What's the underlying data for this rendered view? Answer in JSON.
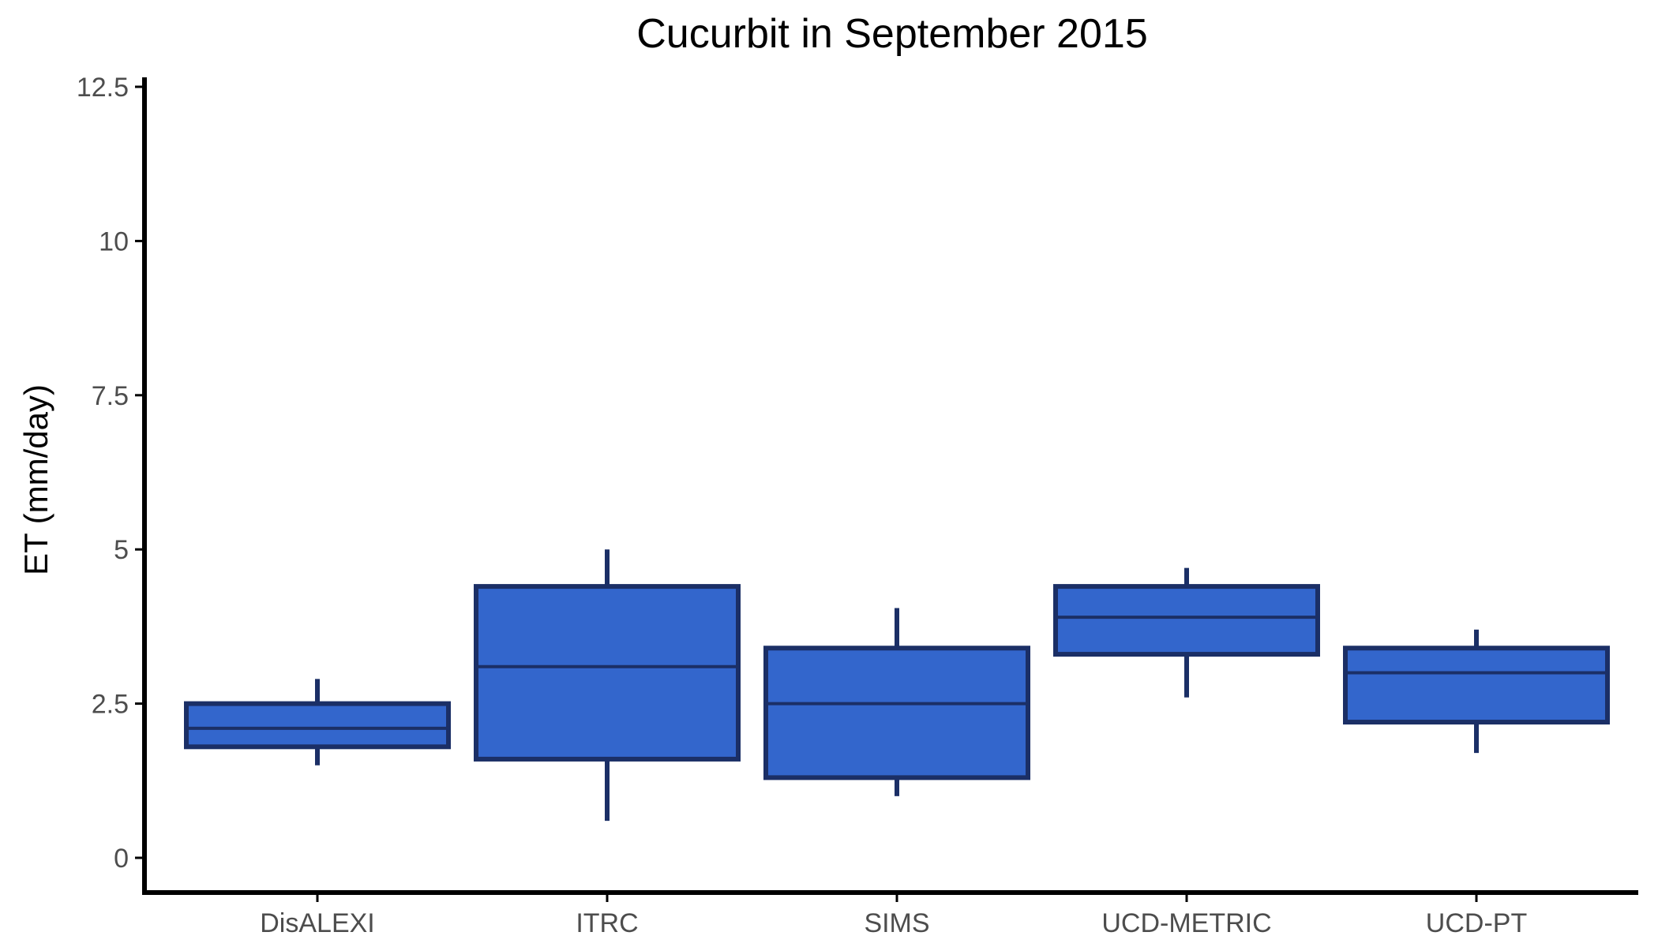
{
  "chart_data": {
    "type": "boxplot",
    "title": "Cucurbit in September 2015",
    "xlabel": "",
    "ylabel": "ET (mm/day)",
    "ylim": [
      0,
      12.5
    ],
    "yticks": [
      0,
      2.5,
      5,
      7.5,
      10,
      12.5
    ],
    "ytick_labels": [
      "0",
      "2.5",
      "5",
      "7.5",
      "10",
      "12.5"
    ],
    "grid": false,
    "legend": "none",
    "categories": [
      "DisALEXI",
      "ITRC",
      "SIMS",
      "UCD-METRIC",
      "UCD-PT"
    ],
    "boxes": [
      {
        "category": "DisALEXI",
        "min": 1.5,
        "q1": 1.8,
        "median": 2.1,
        "q3": 2.5,
        "max": 2.9
      },
      {
        "category": "ITRC",
        "min": 0.6,
        "q1": 1.6,
        "median": 3.1,
        "q3": 4.4,
        "max": 5.0
      },
      {
        "category": "SIMS",
        "min": 1.0,
        "q1": 1.3,
        "median": 2.5,
        "q3": 3.4,
        "max": 4.05
      },
      {
        "category": "UCD-METRIC",
        "min": 2.6,
        "q1": 3.3,
        "median": 3.9,
        "q3": 4.4,
        "max": 4.7
      },
      {
        "category": "UCD-PT",
        "min": 1.7,
        "q1": 2.2,
        "median": 3.0,
        "q3": 3.4,
        "max": 3.7
      }
    ],
    "colors": {
      "box_fill": "#3366CC",
      "box_stroke": "#1B2F66",
      "axis": "#000000",
      "tick_label": "#4d4d4d"
    }
  }
}
